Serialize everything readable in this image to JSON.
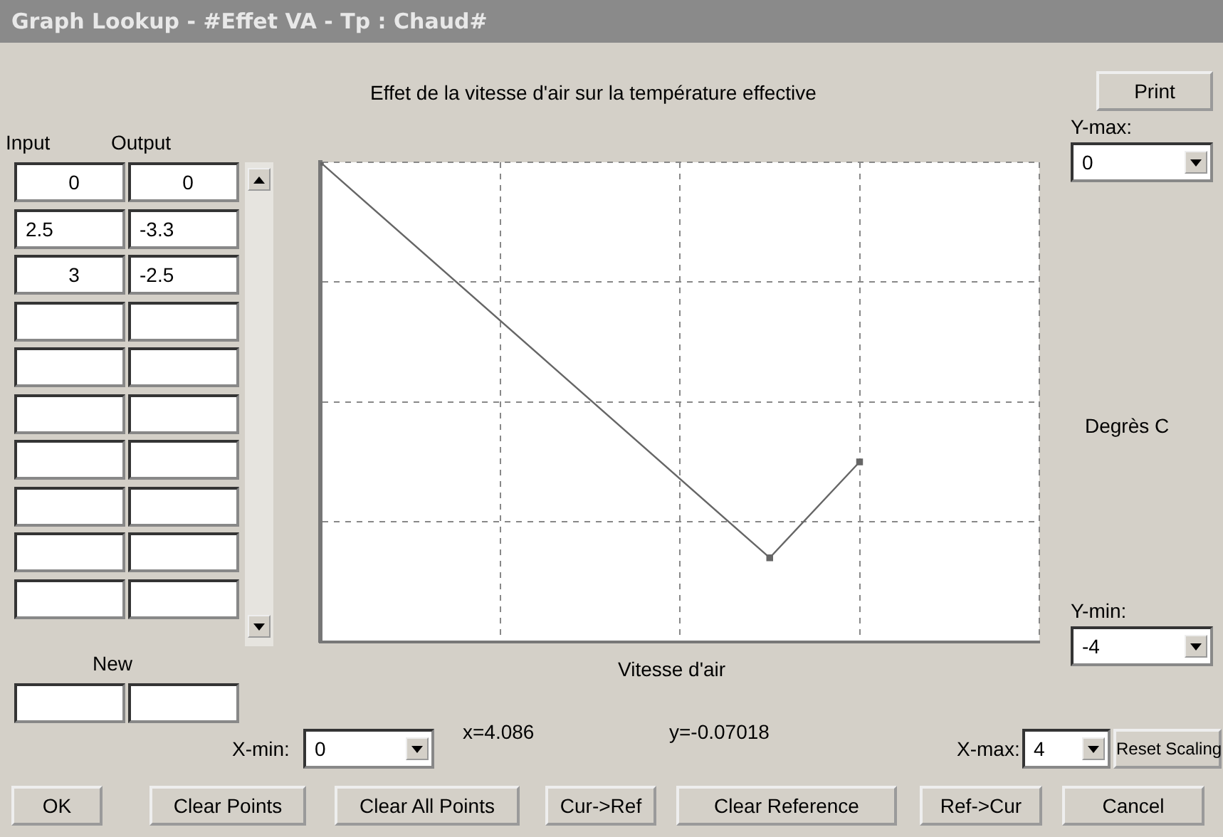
{
  "chart_data": {
    "type": "line",
    "title": "Effet de la vitesse d'air sur la température effective",
    "xlabel": "Vitesse d'air",
    "ylabel": "Degrès C",
    "x": [
      0,
      2.5,
      3
    ],
    "series": [
      {
        "color": "#666666",
        "values": [
          0,
          -3.3,
          -2.5
        ]
      }
    ],
    "xlim": [
      0,
      4
    ],
    "ylim": [
      -4,
      0
    ],
    "xticks": [
      0,
      {
        "value": 1,
        "label": null
      },
      {
        "value": 2,
        "label": null
      },
      {
        "value": 3,
        "label": null
      },
      4
    ],
    "yticks": [
      -4,
      {
        "value": -3,
        "label": null
      },
      {
        "value": -2,
        "label": null
      },
      {
        "value": -1,
        "label": null
      },
      0
    ],
    "grid": true,
    "legend": false,
    "marker": "square",
    "line_style": "solid",
    "annotations": [
      "Graph Lookup - #Effet VA - Tp : Chaud#",
      "Input",
      "Output",
      "New",
      "Print",
      "Y-max:",
      "Y-min:",
      "X-min:",
      "X-max:",
      "x=4.086",
      "y=-0.07018",
      "Reset Scaling",
      "OK",
      "Clear Points",
      "Clear All Points",
      "Cur->Ref",
      "Clear Reference",
      "Ref->Cur",
      "Cancel",
      "0",
      "0",
      "2.5",
      "-3.3",
      "3",
      "-2.5"
    ]
  }
}
